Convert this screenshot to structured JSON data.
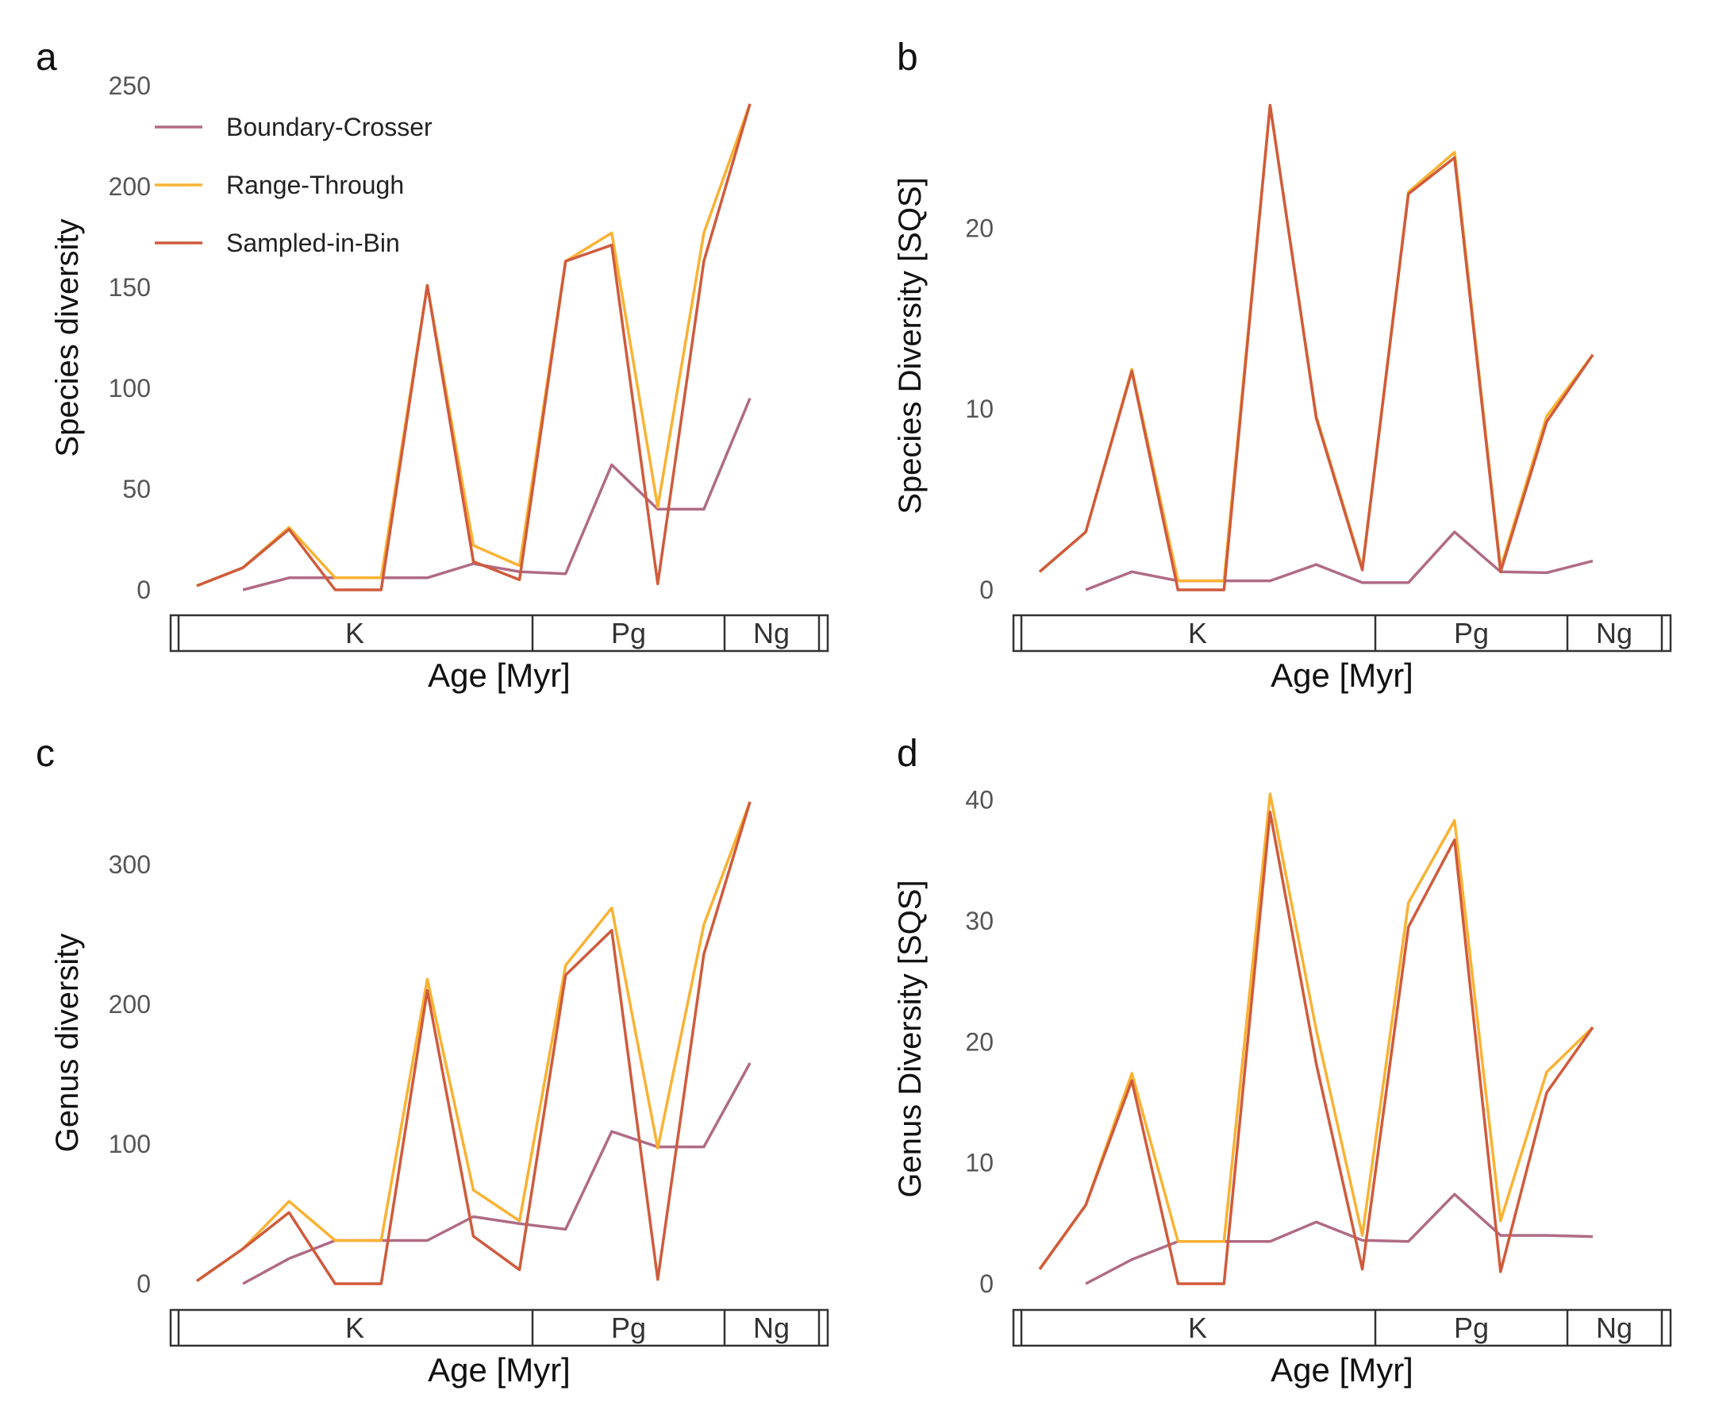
{
  "colors": {
    "boundary_crosser": "#B06B85",
    "range_through": "#F9B233",
    "sampled_in_bin": "#CF5B3C"
  },
  "legend": {
    "items": [
      {
        "label": "Boundary-Crosser",
        "color": "#B06B85"
      },
      {
        "label": "Range-Through",
        "color": "#F9B233"
      },
      {
        "label": "Sampled-in-Bin",
        "color": "#CF5B3C"
      }
    ]
  },
  "chart_data": [
    {
      "panel": "a",
      "type": "line",
      "ylabel": "Species diversity",
      "xlabel": "Age [Myr]",
      "ylim": [
        0,
        250
      ],
      "yticks": [
        0,
        50,
        100,
        150,
        200,
        250
      ],
      "periods": [
        "K",
        "Pg",
        "Ng"
      ],
      "series": [
        {
          "name": "Boundary-Crosser",
          "points": [
            [
              2,
              0
            ],
            [
              3,
              6
            ],
            [
              4,
              6
            ],
            [
              5,
              6
            ],
            [
              6,
              6
            ],
            [
              7,
              13
            ],
            [
              8,
              9
            ],
            [
              9,
              8
            ],
            [
              10,
              62
            ],
            [
              11,
              40
            ],
            [
              12,
              40
            ],
            [
              13,
              95
            ]
          ]
        },
        {
          "name": "Range-Through",
          "points": [
            [
              1,
              2
            ],
            [
              2,
              11
            ],
            [
              3,
              31
            ],
            [
              4,
              6
            ],
            [
              5,
              6
            ],
            [
              6,
              151
            ],
            [
              7,
              22
            ],
            [
              8,
              12
            ],
            [
              9,
              163
            ],
            [
              10,
              177
            ],
            [
              11,
              41
            ],
            [
              12,
              177
            ],
            [
              13,
              241
            ]
          ]
        },
        {
          "name": "Sampled-in-Bin",
          "points": [
            [
              1,
              2
            ],
            [
              2,
              11
            ],
            [
              3,
              30
            ],
            [
              4,
              0
            ],
            [
              5,
              0
            ],
            [
              6,
              151
            ],
            [
              7,
              14
            ],
            [
              8,
              5
            ],
            [
              9,
              163
            ],
            [
              10,
              171
            ],
            [
              11,
              3
            ],
            [
              12,
              163
            ],
            [
              13,
              241
            ]
          ]
        }
      ]
    },
    {
      "panel": "b",
      "type": "line",
      "ylabel": "Species Diversity  [SQS]",
      "xlabel": "Age [Myr]",
      "ylim": [
        0,
        27
      ],
      "yticks": [
        0,
        10,
        20
      ],
      "periods": [
        "K",
        "Pg",
        "Ng"
      ],
      "series": [
        {
          "name": "Boundary-Crosser",
          "points": [
            [
              2,
              0
            ],
            [
              3,
              1.0
            ],
            [
              4,
              0.5
            ],
            [
              5,
              0.5
            ],
            [
              6,
              0.5
            ],
            [
              7,
              1.4
            ],
            [
              8,
              0.4
            ],
            [
              9,
              0.4
            ],
            [
              10,
              3.2
            ],
            [
              11,
              1.0
            ],
            [
              12,
              0.95
            ],
            [
              13,
              1.6
            ]
          ]
        },
        {
          "name": "Range-Through",
          "points": [
            [
              1,
              1.0
            ],
            [
              2,
              3.2
            ],
            [
              3,
              12.2
            ],
            [
              4,
              0.5
            ],
            [
              5,
              0.5
            ],
            [
              6,
              26.8
            ],
            [
              7,
              9.6
            ],
            [
              8,
              1.2
            ],
            [
              9,
              22.0
            ],
            [
              10,
              24.2
            ],
            [
              11,
              1.2
            ],
            [
              12,
              9.6
            ],
            [
              13,
              13.0
            ]
          ]
        },
        {
          "name": "Sampled-in-Bin",
          "points": [
            [
              1,
              1.0
            ],
            [
              2,
              3.2
            ],
            [
              3,
              12.1
            ],
            [
              4,
              0
            ],
            [
              5,
              0
            ],
            [
              6,
              26.8
            ],
            [
              7,
              9.5
            ],
            [
              8,
              1.1
            ],
            [
              9,
              21.9
            ],
            [
              10,
              23.9
            ],
            [
              11,
              1.0
            ],
            [
              12,
              9.3
            ],
            [
              13,
              13.0
            ]
          ]
        }
      ]
    },
    {
      "panel": "c",
      "type": "line",
      "ylabel": "Genus diversity",
      "xlabel": "Age [Myr]",
      "ylim": [
        0,
        345
      ],
      "yticks": [
        0,
        100,
        200,
        300
      ],
      "periods": [
        "K",
        "Pg",
        "Ng"
      ],
      "series": [
        {
          "name": "Boundary-Crosser",
          "points": [
            [
              2,
              0
            ],
            [
              3,
              18
            ],
            [
              4,
              31
            ],
            [
              5,
              31
            ],
            [
              6,
              31
            ],
            [
              7,
              48
            ],
            [
              8,
              43
            ],
            [
              9,
              39
            ],
            [
              10,
              109
            ],
            [
              11,
              98
            ],
            [
              12,
              98
            ],
            [
              13,
              158
            ]
          ]
        },
        {
          "name": "Range-Through",
          "points": [
            [
              1,
              2
            ],
            [
              2,
              25
            ],
            [
              3,
              59
            ],
            [
              4,
              31
            ],
            [
              5,
              31
            ],
            [
              6,
              218
            ],
            [
              7,
              67
            ],
            [
              8,
              45
            ],
            [
              9,
              228
            ],
            [
              10,
              269
            ],
            [
              11,
              97
            ],
            [
              12,
              257
            ],
            [
              13,
              345
            ]
          ]
        },
        {
          "name": "Sampled-in-Bin",
          "points": [
            [
              1,
              2
            ],
            [
              2,
              25
            ],
            [
              3,
              51
            ],
            [
              4,
              0
            ],
            [
              5,
              0
            ],
            [
              6,
              210
            ],
            [
              7,
              34
            ],
            [
              8,
              10
            ],
            [
              9,
              221
            ],
            [
              10,
              253
            ],
            [
              11,
              3
            ],
            [
              12,
              236
            ],
            [
              13,
              345
            ]
          ]
        }
      ]
    },
    {
      "panel": "d",
      "type": "line",
      "ylabel": "Genus Diversity  [SQS]",
      "xlabel": "Age [Myr]",
      "ylim": [
        0,
        40.5
      ],
      "yticks": [
        0,
        10,
        20,
        30,
        40
      ],
      "periods": [
        "K",
        "Pg",
        "Ng"
      ],
      "series": [
        {
          "name": "Boundary-Crosser",
          "points": [
            [
              2,
              0
            ],
            [
              3,
              2
            ],
            [
              4,
              3.5
            ],
            [
              5,
              3.5
            ],
            [
              6,
              3.5
            ],
            [
              7,
              5.1
            ],
            [
              8,
              3.6
            ],
            [
              9,
              3.5
            ],
            [
              10,
              7.4
            ],
            [
              11,
              4.0
            ],
            [
              12,
              4.0
            ],
            [
              13,
              3.9
            ]
          ]
        },
        {
          "name": "Range-Through",
          "points": [
            [
              1,
              1.2
            ],
            [
              2,
              6.5
            ],
            [
              3,
              17.4
            ],
            [
              4,
              3.5
            ],
            [
              5,
              3.5
            ],
            [
              6,
              40.5
            ],
            [
              7,
              21.0
            ],
            [
              8,
              4.0
            ],
            [
              9,
              31.5
            ],
            [
              10,
              38.3
            ],
            [
              11,
              5.2
            ],
            [
              12,
              17.5
            ],
            [
              13,
              21.2
            ]
          ]
        },
        {
          "name": "Sampled-in-Bin",
          "points": [
            [
              1,
              1.2
            ],
            [
              2,
              6.5
            ],
            [
              3,
              16.8
            ],
            [
              4,
              0
            ],
            [
              5,
              0
            ],
            [
              6,
              39.0
            ],
            [
              7,
              18.2
            ],
            [
              8,
              1.2
            ],
            [
              9,
              29.5
            ],
            [
              10,
              36.7
            ],
            [
              11,
              1.0
            ],
            [
              12,
              15.8
            ],
            [
              13,
              21.2
            ]
          ]
        }
      ]
    }
  ]
}
